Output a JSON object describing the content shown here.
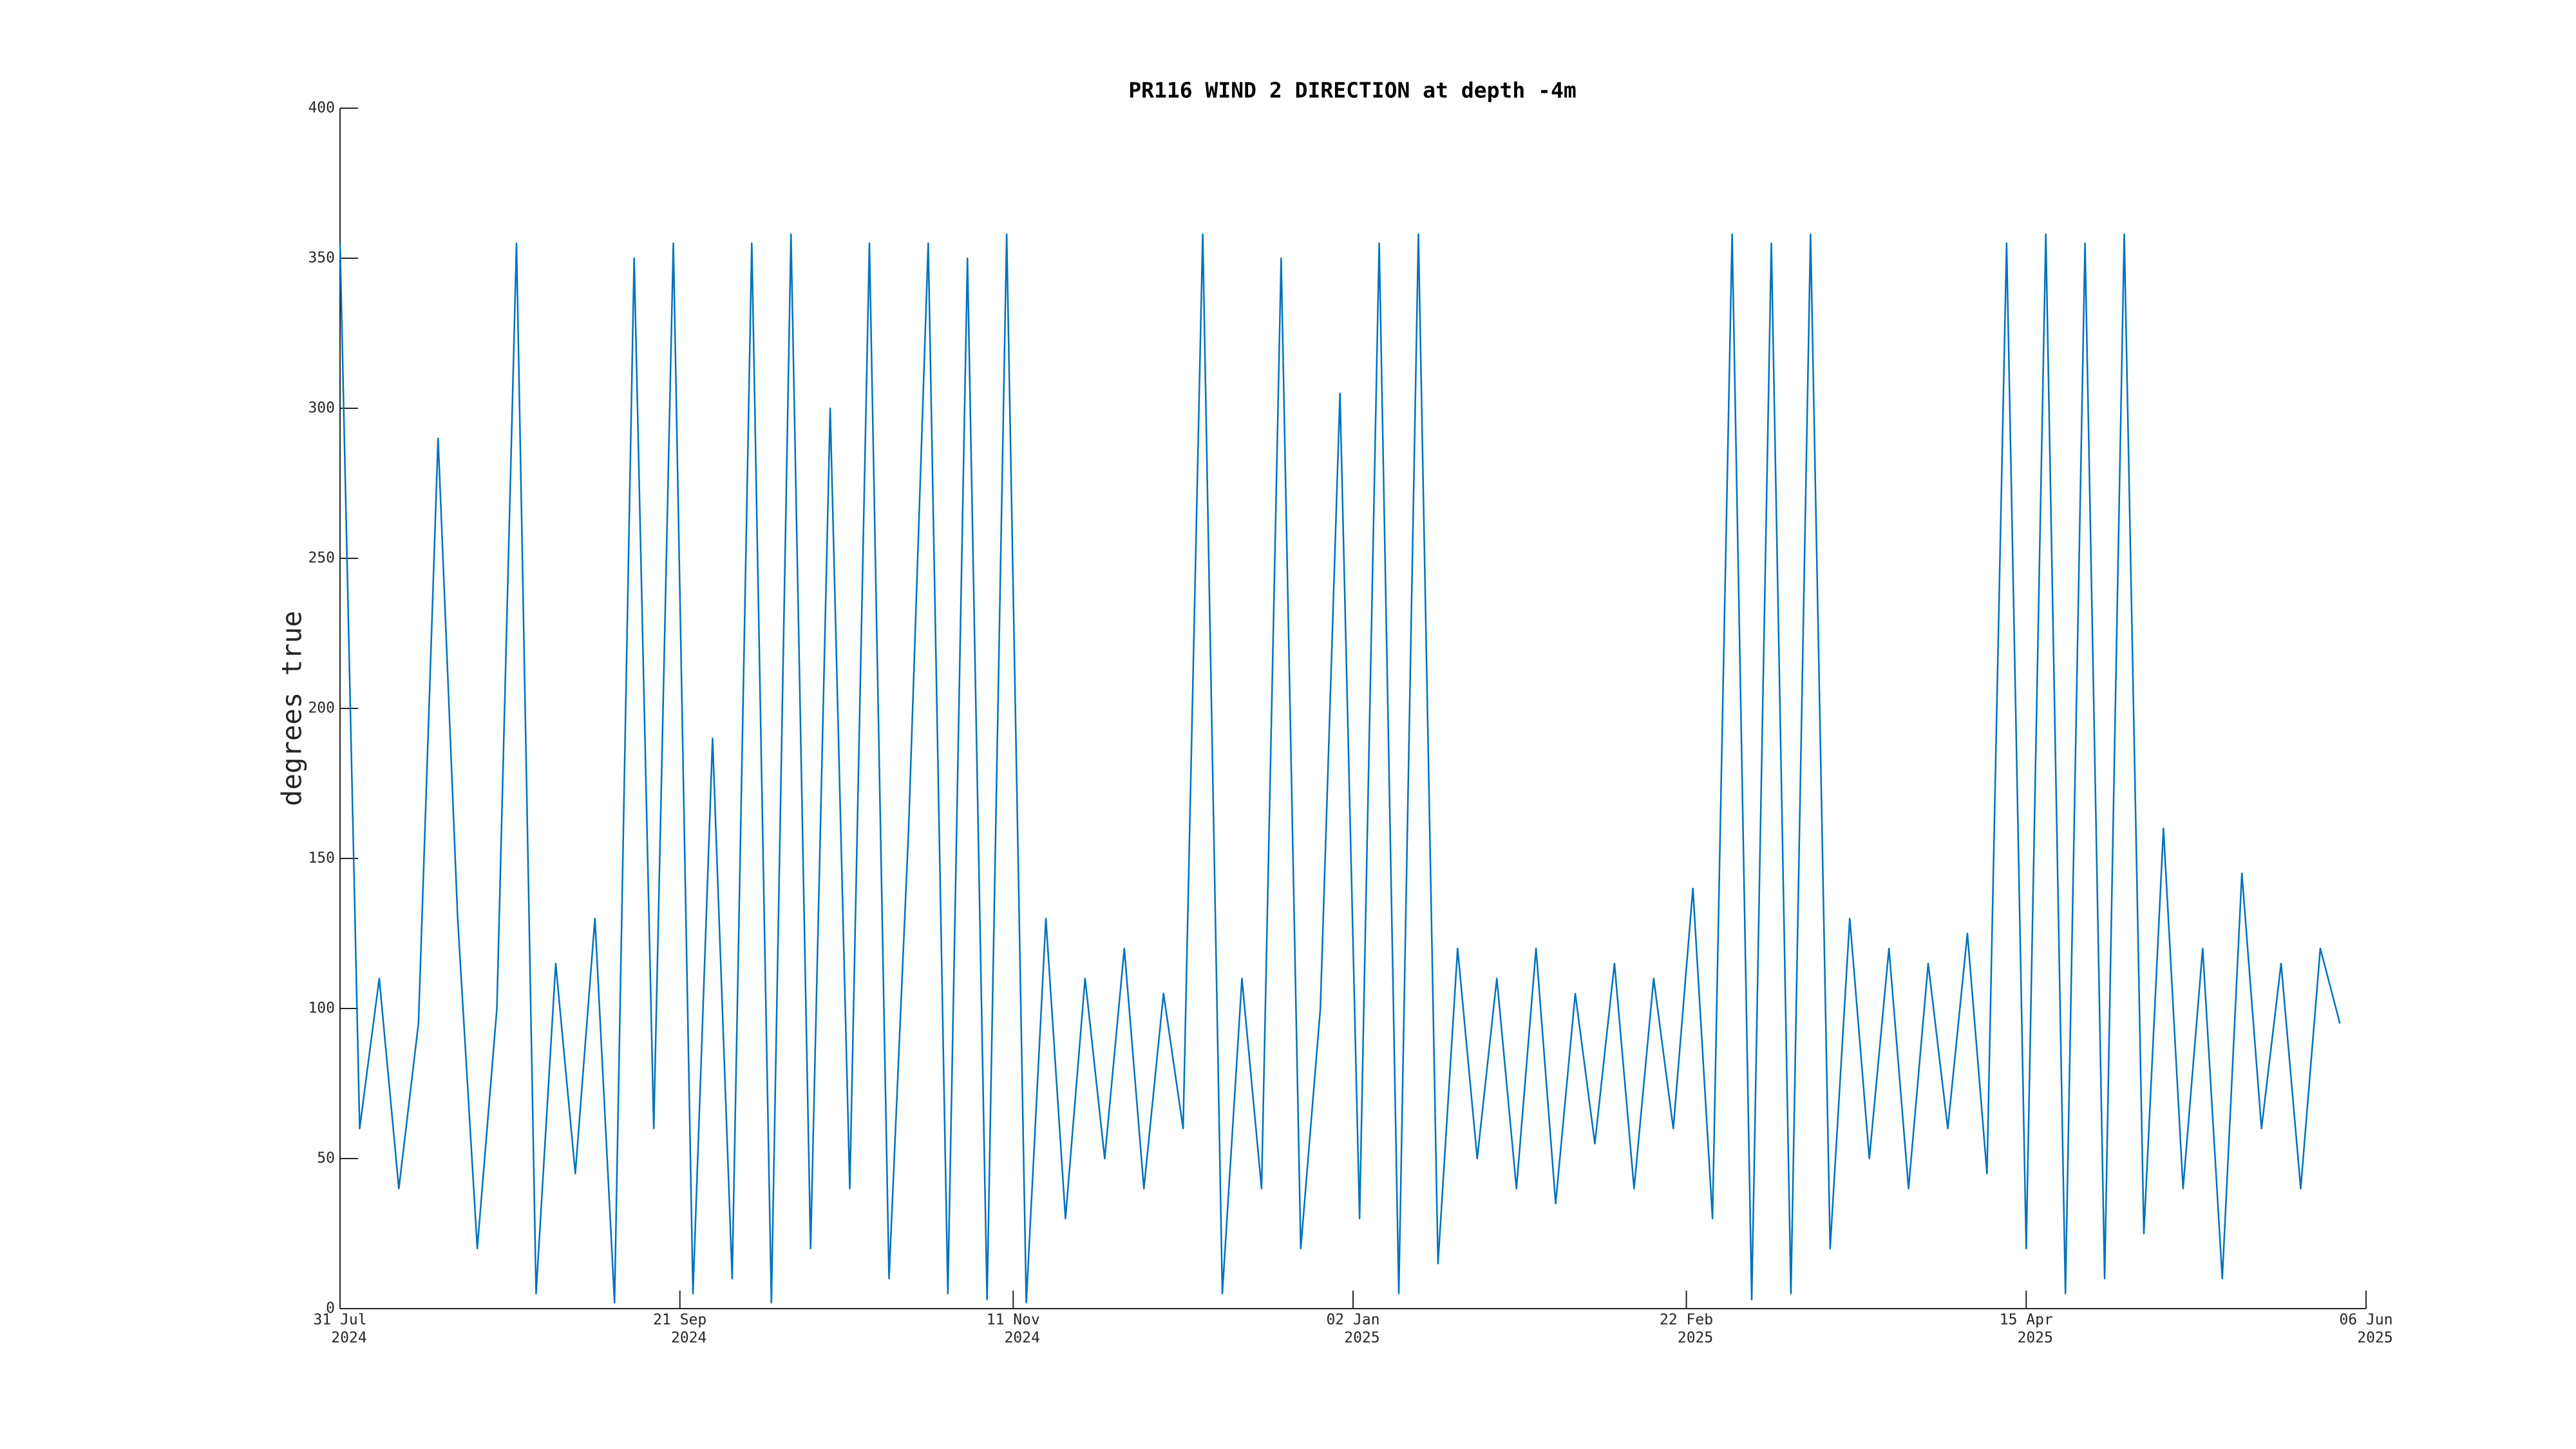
{
  "chart_data": {
    "type": "line",
    "title": "PR116 WIND 2 DIRECTION at depth -4m",
    "ylabel": "degrees true",
    "color": "#0072bd",
    "x": [
      "2024-07-31",
      "2024-08-03",
      "2024-08-06",
      "2024-08-09",
      "2024-08-12",
      "2024-08-15",
      "2024-08-18",
      "2024-08-21",
      "2024-08-24",
      "2024-08-27",
      "2024-08-30",
      "2024-09-02",
      "2024-09-05",
      "2024-09-08",
      "2024-09-11",
      "2024-09-14",
      "2024-09-17",
      "2024-09-20",
      "2024-09-23",
      "2024-09-26",
      "2024-09-29",
      "2024-10-02",
      "2024-10-05",
      "2024-10-08",
      "2024-10-11",
      "2024-10-14",
      "2024-10-17",
      "2024-10-20",
      "2024-10-23",
      "2024-10-26",
      "2024-10-29",
      "2024-11-01",
      "2024-11-04",
      "2024-11-07",
      "2024-11-10",
      "2024-11-13",
      "2024-11-16",
      "2024-11-19",
      "2024-11-22",
      "2024-11-25",
      "2024-11-28",
      "2024-12-01",
      "2024-12-04",
      "2024-12-07",
      "2024-12-10",
      "2024-12-13",
      "2024-12-16",
      "2024-12-19",
      "2024-12-22",
      "2024-12-25",
      "2024-12-28",
      "2024-12-31",
      "2025-01-03",
      "2025-01-06",
      "2025-01-09",
      "2025-01-12",
      "2025-01-15",
      "2025-01-18",
      "2025-01-21",
      "2025-01-24",
      "2025-01-27",
      "2025-01-30",
      "2025-02-02",
      "2025-02-05",
      "2025-02-08",
      "2025-02-11",
      "2025-02-14",
      "2025-02-17",
      "2025-02-20",
      "2025-02-23",
      "2025-02-26",
      "2025-03-01",
      "2025-03-04",
      "2025-03-07",
      "2025-03-10",
      "2025-03-13",
      "2025-03-16",
      "2025-03-19",
      "2025-03-22",
      "2025-03-25",
      "2025-03-28",
      "2025-03-31",
      "2025-04-03",
      "2025-04-06",
      "2025-04-09",
      "2025-04-12",
      "2025-04-15",
      "2025-04-18",
      "2025-04-21",
      "2025-04-24",
      "2025-04-27",
      "2025-04-30",
      "2025-05-03",
      "2025-05-06",
      "2025-05-09",
      "2025-05-12",
      "2025-05-15",
      "2025-05-18",
      "2025-05-21",
      "2025-05-24",
      "2025-05-27",
      "2025-05-30",
      "2025-06-02"
    ],
    "values": [
      355,
      60,
      110,
      40,
      95,
      290,
      130,
      20,
      100,
      355,
      5,
      115,
      45,
      130,
      2,
      350,
      60,
      355,
      5,
      190,
      10,
      355,
      2,
      358,
      20,
      300,
      40,
      355,
      10,
      160,
      355,
      5,
      350,
      3,
      358,
      2,
      130,
      30,
      110,
      50,
      120,
      40,
      105,
      60,
      358,
      5,
      110,
      40,
      350,
      20,
      100,
      305,
      30,
      355,
      5,
      358,
      15,
      120,
      50,
      110,
      40,
      120,
      35,
      105,
      55,
      115,
      40,
      110,
      60,
      140,
      30,
      358,
      3,
      355,
      5,
      358,
      20,
      130,
      50,
      120,
      40,
      115,
      60,
      125,
      45,
      355,
      20,
      358,
      5,
      355,
      10,
      358,
      25,
      160,
      40,
      120,
      10,
      145,
      60,
      115,
      40,
      120,
      95
    ],
    "xlim": [
      "2024-07-31",
      "2025-06-06"
    ],
    "xticks": [
      {
        "value": "2024-07-31",
        "label": "31 Jul",
        "year": "2024"
      },
      {
        "value": "2024-09-21",
        "label": "21 Sep",
        "year": "2024"
      },
      {
        "value": "2024-11-11",
        "label": "11 Nov",
        "year": "2024"
      },
      {
        "value": "2025-01-02",
        "label": "02 Jan",
        "year": "2025"
      },
      {
        "value": "2025-02-22",
        "label": "22 Feb",
        "year": "2025"
      },
      {
        "value": "2025-04-15",
        "label": "15 Apr",
        "year": "2025"
      },
      {
        "value": "2025-06-06",
        "label": "06 Jun",
        "year": "2025"
      }
    ],
    "ylim": [
      0,
      400
    ],
    "yticks": [
      0,
      50,
      100,
      150,
      200,
      250,
      300,
      350,
      400
    ],
    "grid": false
  }
}
